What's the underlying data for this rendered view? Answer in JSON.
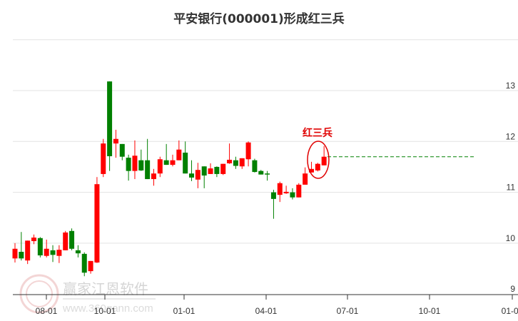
{
  "chart_data": {
    "type": "candlestick",
    "title": "平安银行(000001)形成红三兵",
    "interval": "weekly",
    "ylim": [
      9,
      14
    ],
    "y_ticks": [
      "13",
      "12",
      "11",
      "10",
      "9"
    ],
    "y_tick_values": [
      13,
      12,
      11,
      10,
      9
    ],
    "x_ticks": [
      "08-01",
      "10-01",
      "01-01",
      "04-01",
      "07-01",
      "10-01",
      "01-01"
    ],
    "grid": true,
    "up_color": "#ff0000",
    "down_color": "#008000",
    "ohlc": [
      [
        9.7,
        9.89,
        10.0,
        9.62
      ],
      [
        9.83,
        9.7,
        10.22,
        9.66
      ],
      [
        9.66,
        10.05,
        10.05,
        9.59
      ],
      [
        10.04,
        10.11,
        10.17,
        9.98
      ],
      [
        10.1,
        9.76,
        10.12,
        9.72
      ],
      [
        9.75,
        9.89,
        10.07,
        9.72
      ],
      [
        9.86,
        9.77,
        9.96,
        9.63
      ],
      [
        9.75,
        9.87,
        9.96,
        9.61
      ],
      [
        9.86,
        10.21,
        10.24,
        9.86
      ],
      [
        10.24,
        9.89,
        10.29,
        9.86
      ],
      [
        9.86,
        9.8,
        9.96,
        9.72
      ],
      [
        9.79,
        9.42,
        9.82,
        9.35
      ],
      [
        9.45,
        9.65,
        9.65,
        9.4
      ],
      [
        9.62,
        11.16,
        11.3,
        9.61
      ],
      [
        11.36,
        11.96,
        12.05,
        11.3
      ],
      [
        13.18,
        11.71,
        13.18,
        11.42
      ],
      [
        11.96,
        12.05,
        12.23,
        11.68
      ],
      [
        11.95,
        11.7,
        11.95,
        11.63
      ],
      [
        11.68,
        11.42,
        11.74,
        11.23
      ],
      [
        11.42,
        11.72,
        12.02,
        11.26
      ],
      [
        11.63,
        11.43,
        11.84,
        11.42
      ],
      [
        11.63,
        11.26,
        12.05,
        11.26
      ],
      [
        11.26,
        11.37,
        11.46,
        11.13
      ],
      [
        11.37,
        11.65,
        11.7,
        11.3
      ],
      [
        11.63,
        11.54,
        11.95,
        11.54
      ],
      [
        11.54,
        11.63,
        11.74,
        11.51
      ],
      [
        11.63,
        11.84,
        12.02,
        11.63
      ],
      [
        11.78,
        11.37,
        12.0,
        11.37
      ],
      [
        11.37,
        11.29,
        11.63,
        11.22
      ],
      [
        11.25,
        11.44,
        11.58,
        11.08
      ],
      [
        11.51,
        11.33,
        11.51,
        11.08
      ],
      [
        11.36,
        11.47,
        11.57,
        11.36
      ],
      [
        11.5,
        11.36,
        11.51,
        11.3
      ],
      [
        11.36,
        11.56,
        11.56,
        11.34
      ],
      [
        11.57,
        11.64,
        11.96,
        11.56
      ],
      [
        11.63,
        11.52,
        11.7,
        11.46
      ],
      [
        11.51,
        11.67,
        11.67,
        11.46
      ],
      [
        11.65,
        11.98,
        12.0,
        11.51
      ],
      [
        11.63,
        11.4,
        11.66,
        11.39
      ],
      [
        11.42,
        11.35,
        11.44,
        11.35
      ],
      [
        11.37,
        11.35,
        11.42,
        11.23
      ],
      [
        11.0,
        10.87,
        11.05,
        10.48
      ],
      [
        10.95,
        11.18,
        11.21,
        10.81
      ],
      [
        10.98,
        11.01,
        11.13,
        10.97
      ],
      [
        11.0,
        10.9,
        11.08,
        10.86
      ],
      [
        10.9,
        11.15,
        11.18,
        10.9
      ],
      [
        11.15,
        11.37,
        11.49,
        11.15
      ],
      [
        11.39,
        11.46,
        11.6,
        11.39
      ],
      [
        11.43,
        11.56,
        11.58,
        11.41
      ],
      [
        11.53,
        11.7,
        11.91,
        11.53
      ]
    ],
    "ohlc_order": [
      "open",
      "close",
      "high",
      "low"
    ],
    "annotation": {
      "text": "红三兵",
      "color": "#e00000",
      "candles_highlighted": 3
    },
    "reference_line": {
      "value": 11.7,
      "style": "dashed",
      "color": "#008000"
    }
  },
  "watermark": {
    "brand": "赢家江恩软件",
    "url": "www.360gann.com",
    "seal": "江恩赢家"
  }
}
